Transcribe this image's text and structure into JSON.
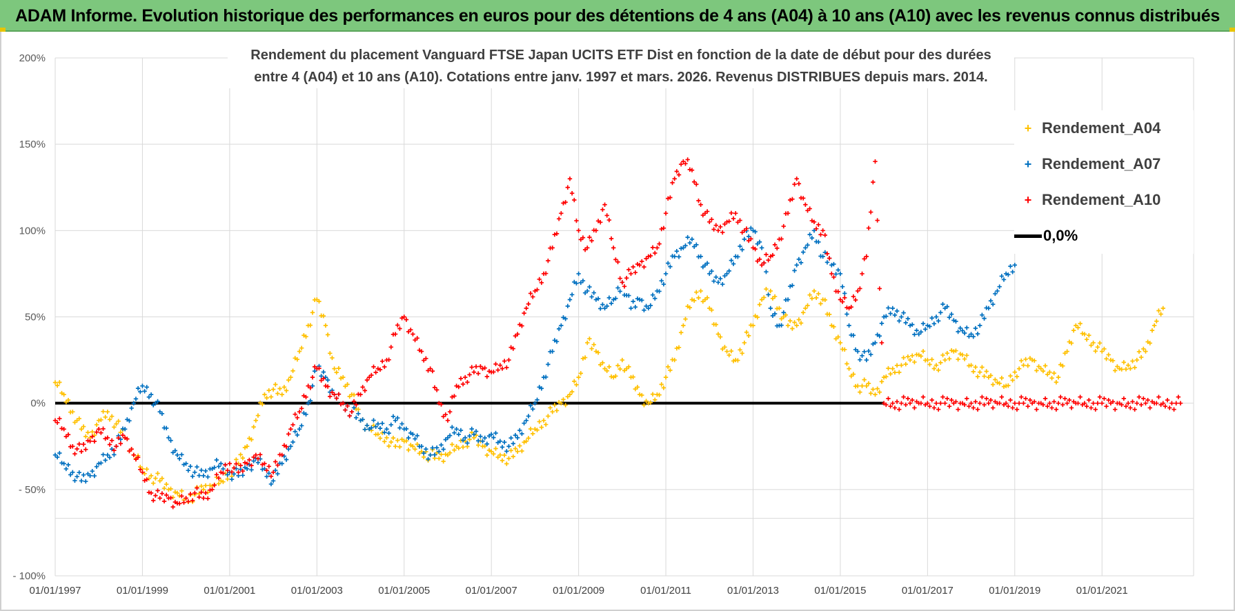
{
  "banner": {
    "title": "ADAM Informe. Evolution historique des performances en euros pour des détentions de 4 ans (A04) à 10 ans (A10) avec les revenus connus distribués",
    "background_color": "#7dc77d"
  },
  "chart_data": {
    "type": "scatter",
    "title": "Rendement du placement Vanguard FTSE Japan UCITS ETF Dist en fonction de la date de début pour des durées entre 4 (A04) et 10 ans (A10).  Cotations entre janv. 1997 et mars. 2026. Revenus DISTRIBUES depuis mars. 2014.",
    "title_lines": [
      "Rendement du placement Vanguard FTSE Japan UCITS ETF Dist en fonction de la date de début pour des durées",
      "entre 4 (A04) et 10 ans (A10).  Cotations entre janv. 1997 et mars. 2026. Revenus DISTRIBUES depuis mars. 2014."
    ],
    "xlabel": "",
    "ylabel": "",
    "x_range": [
      1997.0,
      2023.1
    ],
    "ylim": [
      -100,
      200
    ],
    "y_ticks": [
      -100,
      -50,
      0,
      50,
      100,
      150,
      200
    ],
    "y_tick_labels": [
      "- 100%",
      "- 50%",
      "0%",
      "50%",
      "100%",
      "150%",
      "200%"
    ],
    "x_ticks": [
      1997,
      1999,
      2001,
      2003,
      2005,
      2007,
      2009,
      2011,
      2013,
      2015,
      2017,
      2019,
      2021
    ],
    "x_tick_labels": [
      "01/01/1997",
      "01/01/1999",
      "01/01/2001",
      "01/01/2003",
      "01/01/2005",
      "01/01/2007",
      "01/01/2009",
      "01/01/2011",
      "01/01/2013",
      "01/01/2015",
      "01/01/2017",
      "01/01/2019",
      "01/01/2021"
    ],
    "grid": true,
    "legend_position": "top-right",
    "series": [
      {
        "name": "Rendement_A04",
        "color": "#ffc000",
        "x": [
          1997.0,
          1997.2,
          1997.4,
          1997.6,
          1997.8,
          1998.0,
          1998.2,
          1998.4,
          1998.6,
          1998.8,
          1999.0,
          1999.2,
          1999.4,
          1999.6,
          1999.8,
          2000.0,
          2000.2,
          2000.4,
          2000.6,
          2000.8,
          2001.0,
          2001.2,
          2001.4,
          2001.6,
          2001.8,
          2002.0,
          2002.2,
          2002.4,
          2002.6,
          2002.8,
          2003.0,
          2003.2,
          2003.4,
          2003.6,
          2003.8,
          2004.0,
          2004.2,
          2004.4,
          2004.6,
          2004.8,
          2005.0,
          2005.2,
          2005.4,
          2005.6,
          2005.8,
          2006.0,
          2006.2,
          2006.4,
          2006.6,
          2006.8,
          2007.0,
          2007.2,
          2007.4,
          2007.6,
          2007.8,
          2008.0,
          2008.2,
          2008.4,
          2008.6,
          2008.8,
          2009.0,
          2009.2,
          2009.4,
          2009.6,
          2009.8,
          2010.0,
          2010.2,
          2010.4,
          2010.6,
          2010.8,
          2011.0,
          2011.2,
          2011.4,
          2011.6,
          2011.8,
          2012.0,
          2012.2,
          2012.4,
          2012.6,
          2012.8,
          2013.0,
          2013.2,
          2013.4,
          2013.6,
          2013.8,
          2014.0,
          2014.2,
          2014.4,
          2014.6,
          2014.8,
          2015.0,
          2015.2,
          2015.4,
          2015.6,
          2015.8,
          2016.0,
          2016.2,
          2016.4,
          2016.6,
          2016.8,
          2017.0,
          2017.2,
          2017.4,
          2017.6,
          2017.8,
          2018.0,
          2018.2,
          2018.4,
          2018.6,
          2018.8,
          2019.0,
          2019.2,
          2019.4,
          2019.6,
          2019.8,
          2020.0,
          2020.2,
          2020.4,
          2020.6,
          2020.8,
          2021.0,
          2021.2,
          2021.4,
          2021.6,
          2021.8,
          2022.0,
          2022.2,
          2022.4
        ],
        "y": [
          12,
          5,
          -5,
          -15,
          -20,
          -10,
          -5,
          -12,
          -20,
          -30,
          -38,
          -42,
          -45,
          -50,
          -52,
          -55,
          -53,
          -50,
          -48,
          -45,
          -40,
          -35,
          -25,
          -10,
          5,
          8,
          5,
          15,
          30,
          45,
          60,
          45,
          20,
          15,
          5,
          -10,
          -15,
          -18,
          -20,
          -25,
          -22,
          -25,
          -28,
          -30,
          -32,
          -30,
          -25,
          -22,
          -20,
          -25,
          -28,
          -30,
          -32,
          -28,
          -22,
          -15,
          -10,
          -5,
          0,
          5,
          15,
          35,
          30,
          20,
          15,
          25,
          15,
          5,
          0,
          5,
          15,
          25,
          45,
          60,
          65,
          55,
          40,
          30,
          25,
          35,
          45,
          60,
          65,
          55,
          45,
          45,
          55,
          65,
          60,
          45,
          35,
          20,
          10,
          10,
          5,
          15,
          20,
          22,
          25,
          28,
          25,
          22,
          25,
          30,
          28,
          22,
          18,
          15,
          12,
          10,
          18,
          22,
          25,
          20,
          18,
          15,
          30,
          45,
          40,
          35,
          30,
          25,
          20,
          22,
          25,
          30,
          45,
          55
        ]
      },
      {
        "name": "Rendement_A07",
        "color": "#0070c0",
        "x": [
          1997.0,
          1997.2,
          1997.4,
          1997.6,
          1997.8,
          1998.0,
          1998.2,
          1998.4,
          1998.6,
          1998.8,
          1999.0,
          1999.2,
          1999.4,
          1999.6,
          1999.8,
          2000.0,
          2000.2,
          2000.4,
          2000.6,
          2000.8,
          2001.0,
          2001.2,
          2001.4,
          2001.6,
          2001.8,
          2002.0,
          2002.2,
          2002.4,
          2002.6,
          2002.8,
          2003.0,
          2003.2,
          2003.4,
          2003.6,
          2003.8,
          2004.0,
          2004.2,
          2004.4,
          2004.6,
          2004.8,
          2005.0,
          2005.2,
          2005.4,
          2005.6,
          2005.8,
          2006.0,
          2006.2,
          2006.4,
          2006.6,
          2006.8,
          2007.0,
          2007.2,
          2007.4,
          2007.6,
          2007.8,
          2008.0,
          2008.2,
          2008.4,
          2008.6,
          2008.8,
          2009.0,
          2009.2,
          2009.4,
          2009.6,
          2009.8,
          2010.0,
          2010.2,
          2010.4,
          2010.6,
          2010.8,
          2011.0,
          2011.2,
          2011.4,
          2011.6,
          2011.8,
          2012.0,
          2012.2,
          2012.4,
          2012.6,
          2012.8,
          2013.0,
          2013.2,
          2013.4,
          2013.6,
          2013.8,
          2014.0,
          2014.2,
          2014.4,
          2014.6,
          2014.8,
          2015.0,
          2015.2,
          2015.4,
          2015.6,
          2015.8,
          2016.0,
          2016.2,
          2016.4,
          2016.6,
          2016.8,
          2017.0,
          2017.2,
          2017.4,
          2017.6,
          2017.8,
          2018.0,
          2018.2,
          2018.4,
          2018.6,
          2018.8,
          2019.0
        ],
        "y": [
          -30,
          -35,
          -40,
          -45,
          -42,
          -35,
          -30,
          -25,
          -15,
          0,
          10,
          5,
          -5,
          -20,
          -30,
          -35,
          -40,
          -42,
          -38,
          -35,
          -40,
          -42,
          -38,
          -32,
          -38,
          -45,
          -35,
          -25,
          -15,
          0,
          20,
          15,
          5,
          0,
          -5,
          -10,
          -15,
          -12,
          -15,
          -10,
          -15,
          -18,
          -25,
          -30,
          -28,
          -20,
          -15,
          -20,
          -18,
          -22,
          -18,
          -22,
          -25,
          -20,
          -10,
          0,
          15,
          30,
          45,
          60,
          75,
          65,
          60,
          55,
          60,
          70,
          55,
          60,
          55,
          65,
          75,
          85,
          90,
          95,
          85,
          75,
          70,
          75,
          85,
          95,
          100,
          90,
          55,
          45,
          60,
          80,
          90,
          100,
          85,
          80,
          75,
          45,
          30,
          25,
          35,
          50,
          55,
          50,
          45,
          40,
          45,
          50,
          55,
          48,
          42,
          40,
          45,
          55,
          65,
          75,
          80
        ]
      },
      {
        "name": "Rendement_A10",
        "color": "#ff0000",
        "x": [
          1997.0,
          1997.2,
          1997.4,
          1997.6,
          1997.8,
          1998.0,
          1998.2,
          1998.4,
          1998.6,
          1998.8,
          1999.0,
          1999.2,
          1999.4,
          1999.6,
          1999.8,
          2000.0,
          2000.2,
          2000.4,
          2000.6,
          2000.8,
          2001.0,
          2001.2,
          2001.4,
          2001.6,
          2001.8,
          2002.0,
          2002.2,
          2002.4,
          2002.6,
          2002.8,
          2003.0,
          2003.2,
          2003.4,
          2003.6,
          2003.8,
          2004.0,
          2004.2,
          2004.4,
          2004.6,
          2004.8,
          2005.0,
          2005.2,
          2005.4,
          2005.6,
          2005.8,
          2006.0,
          2006.2,
          2006.4,
          2006.6,
          2006.8,
          2007.0,
          2007.2,
          2007.4,
          2007.6,
          2007.8,
          2008.0,
          2008.2,
          2008.4,
          2008.6,
          2008.8,
          2009.0,
          2009.2,
          2009.4,
          2009.6,
          2009.8,
          2010.0,
          2010.2,
          2010.4,
          2010.6,
          2010.8,
          2011.0,
          2011.2,
          2011.4,
          2011.6,
          2011.8,
          2012.0,
          2012.2,
          2012.4,
          2012.6,
          2012.8,
          2013.0,
          2013.2,
          2013.4,
          2013.6,
          2013.8,
          2014.0,
          2014.2,
          2014.4,
          2014.6,
          2014.8,
          2015.0,
          2015.2,
          2015.4,
          2015.6,
          2015.8,
          2016.0,
          2016.2,
          2016.4,
          2016.6,
          2016.8,
          2017.0,
          2017.2,
          2017.4,
          2017.6,
          2017.8,
          2018.0,
          2018.2,
          2018.4,
          2018.6,
          2018.8,
          2019.0,
          2019.2,
          2019.4,
          2019.6,
          2019.8,
          2020.0,
          2020.2,
          2020.4,
          2020.6,
          2020.8,
          2021.0,
          2021.2,
          2021.4,
          2021.6,
          2021.8,
          2022.0,
          2022.2,
          2022.4,
          2022.6,
          2022.8
        ],
        "y": [
          -10,
          -15,
          -25,
          -28,
          -22,
          -15,
          -20,
          -25,
          -20,
          -30,
          -40,
          -52,
          -55,
          -55,
          -58,
          -55,
          -52,
          -55,
          -50,
          -40,
          -35,
          -40,
          -35,
          -30,
          -35,
          -40,
          -30,
          -15,
          -5,
          10,
          20,
          10,
          5,
          0,
          -5,
          5,
          15,
          20,
          25,
          40,
          50,
          40,
          30,
          20,
          0,
          -10,
          10,
          15,
          18,
          20,
          18,
          22,
          25,
          40,
          55,
          65,
          75,
          90,
          110,
          130,
          100,
          90,
          100,
          115,
          90,
          70,
          75,
          80,
          85,
          90,
          110,
          130,
          140,
          135,
          115,
          105,
          100,
          105,
          110,
          100,
          90,
          80,
          85,
          95,
          110,
          130,
          115,
          105,
          100,
          75,
          60,
          55,
          65,
          85,
          140,
          0,
          0,
          0,
          0,
          0,
          0,
          0,
          0,
          0,
          0,
          0,
          0,
          0,
          0,
          0,
          0,
          0,
          0,
          0,
          0,
          0,
          0,
          0,
          0,
          0,
          0,
          0,
          0,
          0,
          0,
          0,
          0,
          0,
          0,
          0
        ]
      }
    ],
    "reference_line": {
      "name": "0,0%",
      "y": 0,
      "color": "#000000"
    }
  },
  "legend": {
    "items": [
      {
        "label": "Rendement_A04",
        "marker": "+",
        "color": "#ffc000"
      },
      {
        "label": "Rendement_A07",
        "marker": "+",
        "color": "#0070c0"
      },
      {
        "label": "Rendement_A10",
        "marker": "+",
        "color": "#ff0000"
      }
    ],
    "zero_line_label": "0,0%"
  }
}
